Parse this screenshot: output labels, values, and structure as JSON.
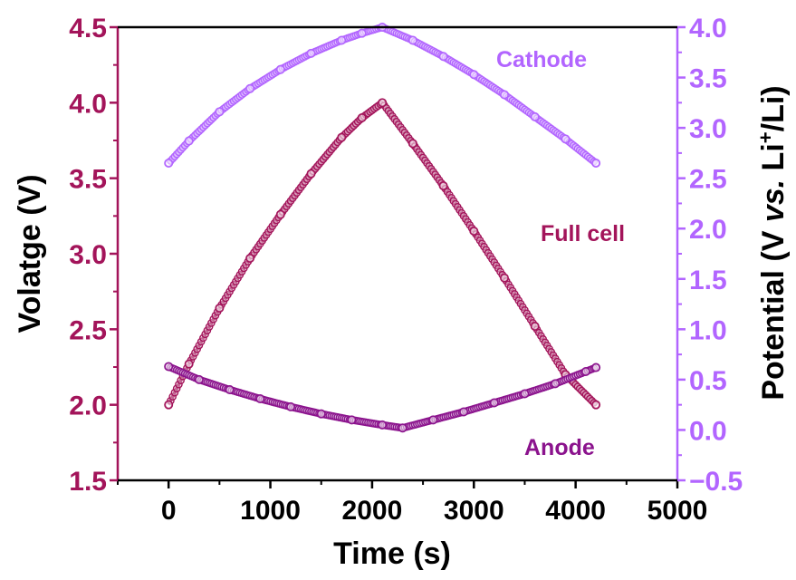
{
  "chart_data": {
    "type": "line",
    "xlabel": "Time (s)",
    "ylabel": "Volatge (V)",
    "ylabel_right_parts": [
      "Potential (V ",
      "vs.",
      " Li",
      "+",
      "/Li)"
    ],
    "xlim": [
      -500,
      5000
    ],
    "ylim": [
      1.5,
      4.5
    ],
    "ylim_right": [
      -0.5,
      4.0
    ],
    "x_ticks": [
      0,
      1000,
      2000,
      3000,
      4000,
      5000
    ],
    "y_ticks": [
      1.5,
      2.0,
      2.5,
      3.0,
      3.5,
      4.0,
      4.5
    ],
    "y_ticks_right": [
      -0.5,
      0.0,
      0.5,
      1.0,
      1.5,
      2.0,
      2.5,
      3.0,
      3.5,
      4.0
    ],
    "x_tick_labels": [
      "0",
      "1000",
      "2000",
      "3000",
      "4000",
      "5000"
    ],
    "y_tick_labels": [
      "1.5",
      "2.0",
      "2.5",
      "3.0",
      "3.5",
      "4.0",
      "4.5"
    ],
    "y_tick_labels_right": [
      "−0.5",
      "0.0",
      "0.5",
      "1.0",
      "1.5",
      "2.0",
      "2.5",
      "3.0",
      "3.5",
      "4.0"
    ],
    "grid": false,
    "colors": {
      "left_axis": "#a3145a",
      "right_axis": "#b265ff",
      "bottom_axis": "#000000",
      "full_cell": "#a3145a",
      "cathode": "#b265ff",
      "anode": "#8b138d"
    },
    "series": [
      {
        "name": "Full cell",
        "axis": "left",
        "color": "#a3145a",
        "x": [
          0,
          200,
          500,
          800,
          1100,
          1400,
          1700,
          1900,
          2100,
          2400,
          2700,
          3000,
          3300,
          3600,
          3900,
          4200
        ],
        "y": [
          2.0,
          2.27,
          2.64,
          2.97,
          3.26,
          3.53,
          3.77,
          3.9,
          4.0,
          3.73,
          3.45,
          3.15,
          2.84,
          2.52,
          2.2,
          2.0
        ]
      },
      {
        "name": "Cathode",
        "axis": "right",
        "color": "#b265ff",
        "x": [
          0,
          200,
          500,
          800,
          1100,
          1400,
          1700,
          1900,
          2100,
          2400,
          2700,
          3000,
          3300,
          3600,
          3900,
          4200
        ],
        "y": [
          2.65,
          2.87,
          3.16,
          3.39,
          3.58,
          3.74,
          3.87,
          3.94,
          4.0,
          3.87,
          3.71,
          3.53,
          3.33,
          3.11,
          2.89,
          2.65
        ]
      },
      {
        "name": "Anode",
        "axis": "right",
        "color": "#8b138d",
        "x": [
          0,
          300,
          600,
          900,
          1200,
          1500,
          1800,
          2100,
          2300,
          2600,
          2900,
          3200,
          3500,
          3800,
          4100,
          4200
        ],
        "y": [
          0.63,
          0.5,
          0.4,
          0.31,
          0.23,
          0.16,
          0.1,
          0.05,
          0.02,
          0.1,
          0.18,
          0.27,
          0.36,
          0.46,
          0.58,
          0.62
        ]
      }
    ],
    "annotations": [
      "Cathode",
      "Full cell",
      "Anode"
    ]
  }
}
